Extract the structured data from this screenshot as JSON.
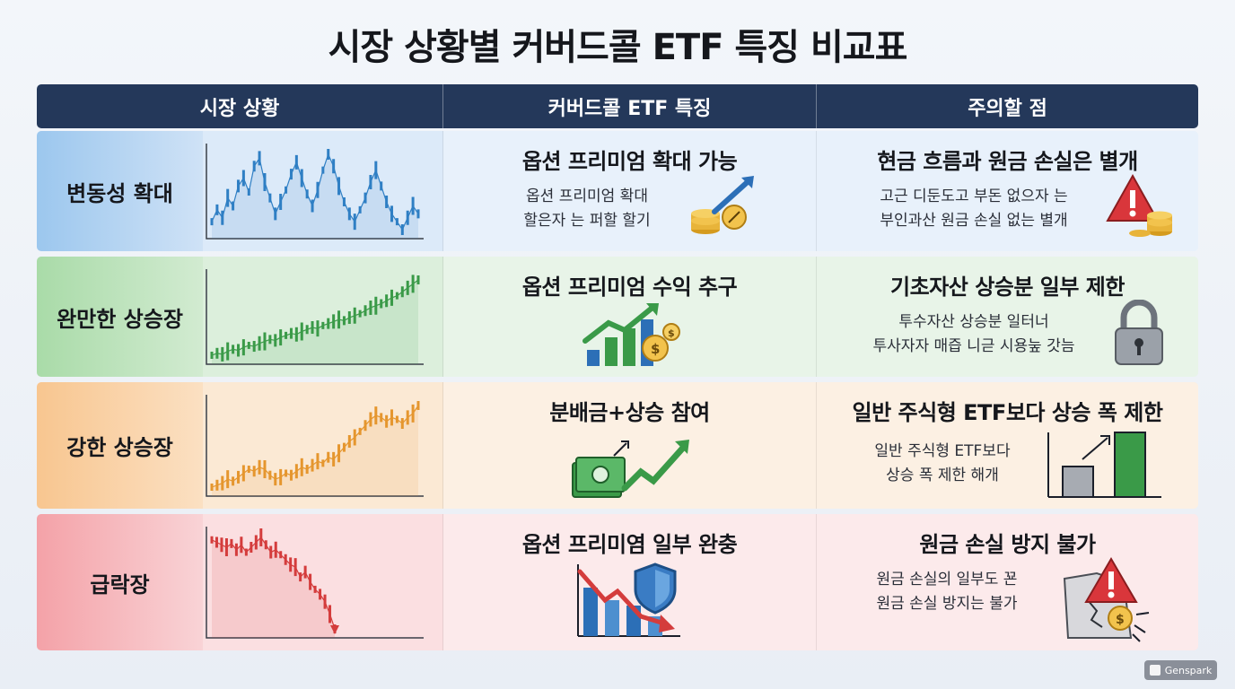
{
  "title": "시장 상황별 커버드콜 ETF 특징 비교표",
  "header": {
    "col1": "시장 상황",
    "col2": "커버드콜 ETF 특징",
    "col3": "주의할 점"
  },
  "rows": [
    {
      "condition": "변동성 확대",
      "feature_title": "옵션 프리미엄 확대 가능",
      "feature_desc": [
        "옵션 프리미엄 확대",
        "할은자 는 퍼할 할기"
      ],
      "caution_title": "현금 흐름과 원금 손실은 별개",
      "caution_desc": [
        "고근 디둔도고 부돈 없으자 는",
        "부인과산 원금 손실 없는 별개"
      ],
      "feature_icon": "coins-arrow-up-icon",
      "caution_icon": "warning-coins-icon",
      "color": "#2f7fc4"
    },
    {
      "condition": "완만한 상승장",
      "feature_title": "옵션 프리미엄 수익 추구",
      "feature_desc": [],
      "caution_title": "기초자산 상승분 일부 제한",
      "caution_desc": [
        "투수자산 상승분 일터너",
        "투사자자 매즙 니귿 시용눞 갓늠"
      ],
      "feature_icon": "growth-chart-dollar-icon",
      "caution_icon": "padlock-icon",
      "color": "#3a9a48"
    },
    {
      "condition": "강한 상승장",
      "feature_title": "분배금+상승 참여",
      "feature_desc": [],
      "caution_title": "일반 주식형 ETF보다 상승 폭 제한",
      "caution_desc": [
        "일반 주식형 ETF보다",
        "상승 폭 제한 해개"
      ],
      "feature_icon": "cash-growth-icon",
      "caution_icon": "bar-compare-icon",
      "color": "#e5962e"
    },
    {
      "condition": "급락장",
      "feature_title": "옵션 프리미염 일부 완충",
      "feature_desc": [],
      "caution_title": "원금 손실 방지 불가",
      "caution_desc": [
        "원금 손실의 일부도 꾠",
        "원금 손실 방지는 불가"
      ],
      "feature_icon": "shield-decline-icon",
      "caution_icon": "broken-warning-icon",
      "color": "#d43c3c"
    }
  ],
  "chart_data": [
    {
      "type": "line",
      "name": "변동성 확대",
      "trend": "volatile",
      "values": [
        40,
        46,
        42,
        52,
        48,
        58,
        62,
        55,
        68,
        72,
        60,
        52,
        44,
        50,
        56,
        64,
        70,
        62,
        54,
        48,
        56,
        66,
        74,
        68,
        58,
        50,
        44,
        40,
        46,
        52,
        60,
        66,
        58,
        50,
        44,
        40,
        36,
        42,
        48,
        44
      ]
    },
    {
      "type": "line",
      "name": "완만한 상승장",
      "trend": "gradual-up",
      "values": [
        10,
        12,
        11,
        14,
        16,
        15,
        18,
        20,
        19,
        22,
        24,
        26,
        25,
        28,
        30,
        32,
        31,
        34,
        36,
        38,
        37,
        40,
        42,
        44,
        46,
        45,
        48,
        50,
        52,
        55,
        58,
        60,
        62,
        65,
        68,
        70,
        74,
        78,
        82,
        86
      ]
    },
    {
      "type": "line",
      "name": "강한 상승장",
      "trend": "strong-up",
      "values": [
        10,
        12,
        14,
        18,
        16,
        20,
        24,
        28,
        26,
        30,
        28,
        22,
        18,
        20,
        24,
        22,
        26,
        30,
        28,
        32,
        36,
        34,
        40,
        38,
        44,
        50,
        56,
        60,
        66,
        72,
        78,
        82,
        80,
        76,
        80,
        78,
        74,
        80,
        84,
        92
      ]
    },
    {
      "type": "line",
      "name": "급락장",
      "trend": "crash",
      "values": [
        80,
        78,
        76,
        74,
        77,
        72,
        76,
        70,
        74,
        78,
        82,
        76,
        70,
        72,
        68,
        64,
        60,
        58,
        50,
        54,
        46,
        40,
        36,
        30,
        20,
        8
      ]
    }
  ],
  "badge": "Genspark"
}
